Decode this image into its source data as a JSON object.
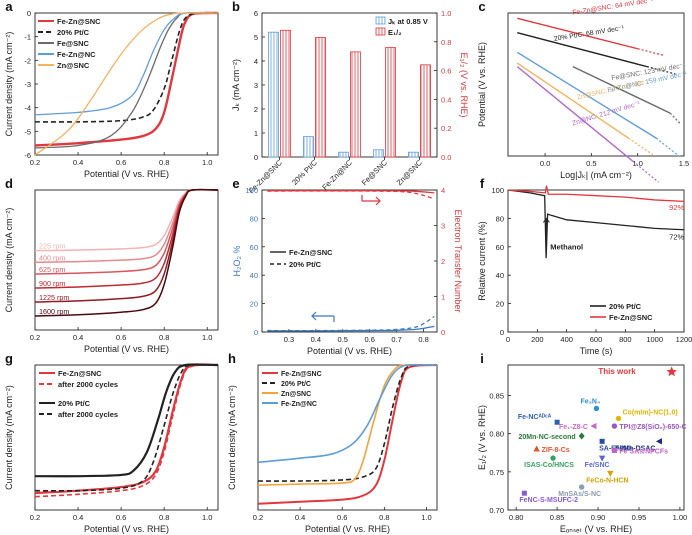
{
  "chart_data": [
    {
      "panel": "a",
      "type": "line",
      "xlabel": "Potential (V vs. RHE)",
      "ylabel": "Current density (mA cm⁻²)",
      "xlim": [
        0.2,
        1.05
      ],
      "ylim": [
        -6,
        0
      ],
      "xticks": [
        "0.2",
        "0.4",
        "0.6",
        "0.8",
        "1.0"
      ],
      "yticks": [
        "0",
        "-1",
        "-2",
        "-3",
        "-4",
        "-5",
        "-6"
      ],
      "series": [
        {
          "name": "Fe-Zn@SNC",
          "color": "#e0383e",
          "dash": "",
          "width": 2.4,
          "x": [
            0.2,
            0.4,
            0.6,
            0.7,
            0.76,
            0.8,
            0.84,
            0.88,
            0.9,
            0.93,
            1.0,
            1.05
          ],
          "y": [
            -5.6,
            -5.5,
            -5.35,
            -5.2,
            -4.9,
            -4.2,
            -2.6,
            -0.9,
            -0.35,
            -0.05,
            0,
            0
          ]
        },
        {
          "name": "20% Pt/C",
          "color": "#222222",
          "dash": "5,3",
          "width": 1.6,
          "x": [
            0.2,
            0.4,
            0.6,
            0.7,
            0.75,
            0.8,
            0.83,
            0.87,
            0.9,
            0.95,
            1.05
          ],
          "y": [
            -4.6,
            -4.6,
            -4.55,
            -4.4,
            -4.1,
            -3.2,
            -2.2,
            -0.8,
            -0.2,
            0,
            0
          ]
        },
        {
          "name": "Fe@SNC",
          "color": "#6a6a6a",
          "dash": "",
          "width": 1.3,
          "x": [
            0.2,
            0.4,
            0.55,
            0.65,
            0.72,
            0.78,
            0.82,
            0.86,
            0.9,
            1.05
          ],
          "y": [
            -5.7,
            -5.6,
            -5.2,
            -4.2,
            -2.9,
            -1.5,
            -0.7,
            -0.2,
            0,
            0
          ]
        },
        {
          "name": "Fe-Zn@NC",
          "color": "#5f9dd8",
          "dash": "",
          "width": 1.3,
          "x": [
            0.2,
            0.4,
            0.55,
            0.65,
            0.7,
            0.75,
            0.8,
            0.85,
            0.9,
            1.05
          ],
          "y": [
            -4.3,
            -4.2,
            -4.0,
            -3.5,
            -2.7,
            -1.6,
            -0.7,
            -0.2,
            0,
            0
          ]
        },
        {
          "name": "Zn@SNC",
          "color": "#f2b35e",
          "dash": "",
          "width": 1.3,
          "x": [
            0.2,
            0.35,
            0.45,
            0.55,
            0.62,
            0.7,
            0.77,
            0.83,
            0.9,
            1.05
          ],
          "y": [
            -6.0,
            -5.0,
            -3.8,
            -2.4,
            -1.5,
            -0.7,
            -0.25,
            -0.05,
            0,
            0
          ]
        }
      ]
    },
    {
      "panel": "b",
      "type": "bar",
      "categories": [
        "Fe-Zn@SNC",
        "20% Pt/C",
        "Fe-Zn@NC",
        "Fe@SNC",
        "Zn@SNC"
      ],
      "ylabel": "Jₖ (mA cm⁻²)",
      "y2label": "E₁/₂ (V vs. RHE)",
      "ylim": [
        0,
        6
      ],
      "y2lim": [
        0,
        1
      ],
      "yticks": [
        "0",
        "1",
        "2",
        "3",
        "4",
        "5",
        "6"
      ],
      "y2ticks": [
        "0.0",
        "0.2",
        "0.4",
        "0.6",
        "0.8",
        "1.0"
      ],
      "series": [
        {
          "name": "Jₖ at 0.85 V",
          "axis": "left",
          "color": "#5f9dd8",
          "values": [
            5.2,
            0.85,
            0.2,
            0.3,
            0.2
          ]
        },
        {
          "name": "E₁/₂",
          "axis": "right",
          "color": "#e0383e",
          "values": [
            0.88,
            0.83,
            0.73,
            0.76,
            0.64
          ]
        }
      ]
    },
    {
      "panel": "c",
      "type": "line",
      "xlabel": "Log|Jₖ| (mA cm⁻²)",
      "ylabel": "Potential (V vs. RHE)",
      "xlim": [
        -0.4,
        1.5
      ],
      "ylim": [
        0.55,
        0.95
      ],
      "xticks": [
        "0.0",
        "0.5",
        "1.0",
        "1.5"
      ],
      "yticks": [],
      "series": [
        {
          "name": "Fe-Zn@SNC: 64 mV dec⁻¹",
          "color": "#e0383e",
          "x": [
            -0.3,
            1.0
          ],
          "y": [
            0.935,
            0.85
          ]
        },
        {
          "name": "20% Pt/C: 68 mV dec⁻¹",
          "color": "#222222",
          "x": [
            -0.3,
            1.1
          ],
          "y": [
            0.895,
            0.8
          ]
        },
        {
          "name": "Fe@SNC: 123 mV dec⁻¹",
          "color": "#6a6a6a",
          "x": [
            0.3,
            1.35
          ],
          "y": [
            0.8,
            0.67
          ]
        },
        {
          "name": "Fe-Zn@NC: 159 mV dec⁻¹",
          "color": "#5f9dd8",
          "x": [
            -0.3,
            1.2
          ],
          "y": [
            0.84,
            0.6
          ]
        },
        {
          "name": "Zn@SNC: 173 mV dec⁻¹",
          "color": "#f2b35e",
          "x": [
            -0.3,
            0.9
          ],
          "y": [
            0.81,
            0.6
          ]
        },
        {
          "name": "Zn@NC: 212 mV dec⁻¹",
          "color": "#b065c8",
          "x": [
            -0.3,
            0.95
          ],
          "y": [
            0.8,
            0.535
          ]
        }
      ]
    },
    {
      "panel": "d",
      "type": "line",
      "xlabel": "Potential (V vs. RHE)",
      "ylabel": "Current density (mA cm⁻²)",
      "xlim": [
        0.2,
        1.05
      ],
      "ylim": [
        -6,
        0
      ],
      "xticks": [
        "0.2",
        "0.4",
        "0.6",
        "0.8",
        "1.0"
      ],
      "yticks": [],
      "series": [
        {
          "name": "225 rpm",
          "color": "#f2b3b6",
          "plateau": -2.6
        },
        {
          "name": "400 rpm",
          "color": "#e68a8f",
          "plateau": -3.1
        },
        {
          "name": "625 rpm",
          "color": "#d9555e",
          "plateau": -3.6
        },
        {
          "name": "900 rpm",
          "color": "#c02a33",
          "plateau": -4.2
        },
        {
          "name": "1225 rpm",
          "color": "#8e1c24",
          "plateau": -4.8
        },
        {
          "name": "1600 rpm",
          "color": "#4a0a10",
          "plateau": -5.4
        }
      ]
    },
    {
      "panel": "e",
      "type": "line",
      "xlabel": "Potential (V vs. RHE)",
      "ylabel": "H₂O₂ %",
      "y2label": "Electron Transfer Number",
      "xlim": [
        0.2,
        0.85
      ],
      "ylim": [
        0,
        100
      ],
      "y2lim": [
        0,
        4
      ],
      "xticks": [
        "0.3",
        "0.4",
        "0.5",
        "0.6",
        "0.7",
        "0.8"
      ],
      "yticks": [
        "0",
        "20",
        "40",
        "60",
        "80",
        "100"
      ],
      "y2ticks": [
        "0",
        "1",
        "2",
        "3",
        "4"
      ],
      "series": [
        {
          "name": "Fe-Zn@SNC",
          "color": "#222222",
          "dash": "",
          "x": [
            0.22,
            0.4,
            0.6,
            0.7,
            0.78,
            0.84
          ],
          "y": [
            0.8,
            0.8,
            1.0,
            1.2,
            2.0,
            4.0
          ]
        },
        {
          "name": "20% Pt/C",
          "color": "#222222",
          "dash": "4,3",
          "x": [
            0.22,
            0.4,
            0.6,
            0.7,
            0.78,
            0.84
          ],
          "y": [
            1.0,
            1.0,
            1.3,
            1.8,
            4.0,
            11.0
          ]
        },
        {
          "name": "n Fe-Zn@SNC",
          "axis": "right",
          "color": "#e0383e",
          "dash": "",
          "x": [
            0.22,
            0.6,
            0.75,
            0.84
          ],
          "y": [
            3.98,
            3.98,
            3.97,
            3.92
          ]
        },
        {
          "name": "n 20% Pt/C",
          "axis": "right",
          "color": "#e0383e",
          "dash": "4,3",
          "x": [
            0.22,
            0.6,
            0.75,
            0.84
          ],
          "y": [
            3.97,
            3.97,
            3.93,
            3.75
          ]
        }
      ]
    },
    {
      "panel": "f",
      "type": "line",
      "xlabel": "Time (s)",
      "ylabel": "Relative current (%)",
      "xlim": [
        0,
        1200
      ],
      "ylim": [
        0,
        100
      ],
      "xticks": [
        "0",
        "200",
        "400",
        "600",
        "800",
        "1000",
        "1200"
      ],
      "yticks": [
        "0",
        "20",
        "40",
        "60",
        "80",
        "100"
      ],
      "annotations": [
        "92%",
        "72%",
        "Methanol"
      ],
      "series": [
        {
          "name": "20% Pt/C",
          "color": "#222222",
          "x": [
            0,
            150,
            250,
            260,
            270,
            300,
            400,
            600,
            800,
            1000,
            1200
          ],
          "y": [
            100,
            98,
            96,
            52,
            83,
            82,
            79,
            77,
            75,
            73,
            72
          ]
        },
        {
          "name": "Fe-Zn@SNC",
          "color": "#e0383e",
          "x": [
            0,
            150,
            255,
            262,
            275,
            400,
            600,
            800,
            1000,
            1200
          ],
          "y": [
            100,
            99,
            98,
            103,
            97,
            97,
            96,
            95,
            93,
            92
          ]
        }
      ]
    },
    {
      "panel": "g",
      "type": "line",
      "xlabel": "Potential (V vs. RHE)",
      "ylabel": "Current density (mA cm⁻²)",
      "xlim": [
        0.2,
        1.05
      ],
      "ylim": [
        -6,
        0
      ],
      "xticks": [
        "0.2",
        "0.4",
        "0.6",
        "0.8",
        "1.0"
      ],
      "yticks": [],
      "series": [
        {
          "name": "Fe-Zn@SNC",
          "color": "#e0383e",
          "dash": "",
          "width": 2.2,
          "x": [
            0.2,
            0.4,
            0.6,
            0.7,
            0.76,
            0.8,
            0.84,
            0.88,
            0.92,
            1.05
          ],
          "y": [
            -5.3,
            -5.2,
            -5.05,
            -4.85,
            -4.4,
            -3.4,
            -1.9,
            -0.6,
            -0.05,
            0
          ]
        },
        {
          "name": "after 2000 cycles",
          "color": "#e0383e",
          "dash": "5,3",
          "width": 1.6,
          "x": [
            0.2,
            0.4,
            0.6,
            0.7,
            0.76,
            0.8,
            0.84,
            0.88,
            0.92,
            1.05
          ],
          "y": [
            -5.45,
            -5.35,
            -5.2,
            -5.0,
            -4.55,
            -3.6,
            -2.1,
            -0.7,
            -0.08,
            0
          ]
        },
        {
          "name": "20% Pt/C",
          "color": "#222222",
          "dash": "",
          "width": 2.2,
          "x": [
            0.2,
            0.4,
            0.6,
            0.66,
            0.72,
            0.77,
            0.81,
            0.85,
            0.9,
            1.05
          ],
          "y": [
            -4.6,
            -4.6,
            -4.55,
            -4.35,
            -3.6,
            -2.3,
            -1.1,
            -0.3,
            0,
            0
          ]
        },
        {
          "name": "after 2000 cycles",
          "color": "#222222",
          "dash": "5,3",
          "width": 1.6,
          "x": [
            0.2,
            0.4,
            0.6,
            0.7,
            0.75,
            0.8,
            0.84,
            0.88,
            0.92,
            1.05
          ],
          "y": [
            -5.2,
            -5.2,
            -5.1,
            -4.8,
            -4.0,
            -2.5,
            -1.2,
            -0.3,
            0,
            0
          ]
        }
      ]
    },
    {
      "panel": "h",
      "type": "line",
      "xlabel": "Potential (V vs. RHE)",
      "ylabel": "Current density (mA cm⁻²)",
      "xlim": [
        0.2,
        1.05
      ],
      "ylim": [
        -7,
        0
      ],
      "xticks": [
        "0.2",
        "0.4",
        "0.6",
        "0.8",
        "1.0"
      ],
      "yticks": [],
      "series": [
        {
          "name": "Fe-Zn@SNC",
          "color": "#e0383e",
          "dash": "",
          "width": 2.0,
          "x": [
            0.2,
            0.4,
            0.6,
            0.7,
            0.76,
            0.8,
            0.84,
            0.88,
            0.92,
            1.05
          ],
          "y": [
            -6.7,
            -6.6,
            -6.5,
            -6.3,
            -5.8,
            -4.6,
            -2.6,
            -0.8,
            -0.1,
            0
          ]
        },
        {
          "name": "20% Pt/C",
          "color": "#222222",
          "dash": "5,3",
          "width": 1.6,
          "x": [
            0.2,
            0.4,
            0.6,
            0.7,
            0.76,
            0.8,
            0.84,
            0.88,
            0.92,
            1.05
          ],
          "y": [
            -5.6,
            -5.6,
            -5.55,
            -5.4,
            -5.0,
            -3.8,
            -2.0,
            -0.6,
            -0.05,
            0
          ]
        },
        {
          "name": "Zn@SNC",
          "color": "#f2a33a",
          "dash": "",
          "width": 1.6,
          "x": [
            0.2,
            0.4,
            0.6,
            0.66,
            0.7,
            0.75,
            0.8,
            0.85,
            0.9,
            1.05
          ],
          "y": [
            -5.8,
            -5.75,
            -5.7,
            -5.5,
            -4.6,
            -2.7,
            -1.0,
            -0.2,
            0,
            0
          ]
        },
        {
          "name": "Fe-Zn@NC",
          "color": "#5f9dd8",
          "dash": "",
          "width": 1.6,
          "x": [
            0.2,
            0.4,
            0.55,
            0.65,
            0.72,
            0.78,
            0.83,
            0.87,
            0.92,
            1.05
          ],
          "y": [
            -4.7,
            -4.5,
            -4.3,
            -3.8,
            -2.9,
            -1.6,
            -0.6,
            -0.15,
            0,
            0
          ]
        }
      ]
    },
    {
      "panel": "i",
      "type": "scatter",
      "xlabel": "Eₒₙₛₑₜ (V vs. RHE)",
      "ylabel": "E₁/₂ (V vs. RHE)",
      "xlim": [
        0.79,
        1.005
      ],
      "ylim": [
        0.7,
        0.89
      ],
      "xticks": [
        "0.80",
        "0.85",
        "0.90",
        "0.95",
        "1.00"
      ],
      "yticks": [
        "0.70",
        "0.75",
        "0.80",
        "0.85"
      ],
      "points": [
        {
          "label": "This work",
          "x": 0.99,
          "y": 0.881,
          "color": "#e0383e",
          "marker": "star"
        },
        {
          "label": "Fe₃N₄",
          "x": 0.898,
          "y": 0.833,
          "color": "#2b8fd0",
          "marker": "circle"
        },
        {
          "label": "Co(mIm)-NC(1.0)",
          "x": 0.925,
          "y": 0.82,
          "color": "#e6b400",
          "marker": "circle"
        },
        {
          "label": "Fe-NCᴬᴰᶜᴬ",
          "x": 0.85,
          "y": 0.815,
          "color": "#2d5fb0",
          "marker": "square"
        },
        {
          "label": "Fe₁-Z8-C",
          "x": 0.895,
          "y": 0.81,
          "color": "#cc66cc",
          "marker": "triangle-left"
        },
        {
          "label": "TPI@Z8(SiO₂)-650-C",
          "x": 0.92,
          "y": 0.81,
          "color": "#9a55c0",
          "marker": "circle"
        },
        {
          "label": "20Mn-NC-second",
          "x": 0.88,
          "y": 0.797,
          "color": "#2a7a3a",
          "marker": "diamond"
        },
        {
          "label": "SA-Fe/NG",
          "x": 0.905,
          "y": 0.79,
          "color": "#2a4aa0",
          "marker": "square"
        },
        {
          "label": "FeMn-DSAC",
          "x": 0.975,
          "y": 0.79,
          "color": "#1a2a7a",
          "marker": "triangle-left"
        },
        {
          "label": "ZIF-8-Cs",
          "x": 0.825,
          "y": 0.78,
          "color": "#e0552e",
          "marker": "triangle"
        },
        {
          "label": "Fe SAs/NPCFs",
          "x": 0.92,
          "y": 0.778,
          "color": "#c060c8",
          "marker": "square"
        },
        {
          "label": "ISAS-Co/HNCS",
          "x": 0.845,
          "y": 0.768,
          "color": "#3aa060",
          "marker": "circle"
        },
        {
          "label": "Fe/SNC",
          "x": 0.905,
          "y": 0.768,
          "color": "#5a6ad0",
          "marker": "triangle-down"
        },
        {
          "label": "FeCo-N-HCN",
          "x": 0.915,
          "y": 0.748,
          "color": "#d8a000",
          "marker": "triangle-down"
        },
        {
          "label": "MnSAs/S-NC",
          "x": 0.88,
          "y": 0.73,
          "color": "#8a9ab0",
          "marker": "circle"
        },
        {
          "label": "FeNC-S-MSUFC-2",
          "x": 0.81,
          "y": 0.722,
          "color": "#8a5ad0",
          "marker": "square"
        }
      ]
    }
  ]
}
